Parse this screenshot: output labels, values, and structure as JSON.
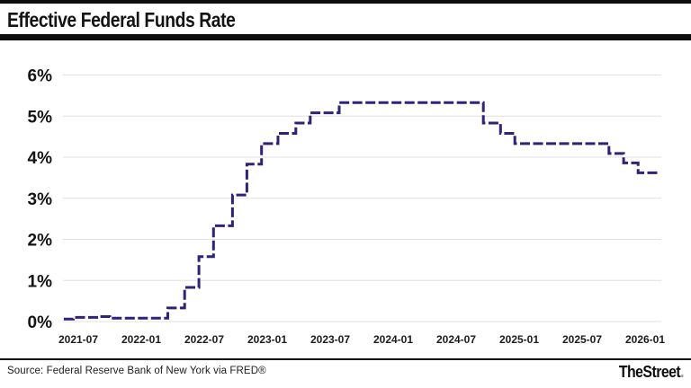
{
  "header": {
    "title": "Effective Federal Funds Rate"
  },
  "footer": {
    "source": "Source: Federal Reserve Bank of New York via FRED®",
    "brand": "TheStreet",
    "brand_dot": "."
  },
  "chart_data": {
    "type": "line",
    "subtype": "step-after",
    "title": "Effective Federal Funds Rate",
    "xlabel": "",
    "ylabel": "",
    "ylim": [
      0,
      6
    ],
    "y_ticks": [
      "0%",
      "1%",
      "2%",
      "3%",
      "4%",
      "5%",
      "6%"
    ],
    "x_ticks": [
      "2021-07",
      "2022-01",
      "2022-07",
      "2023-01",
      "2023-07",
      "2024-01",
      "2024-07",
      "2025-01",
      "2025-07",
      "2026-01"
    ],
    "grid": "horizontal-only",
    "grid_color": "#e0e0e0",
    "line_color": "#2d2379",
    "line_style": "dashed",
    "legend": "none",
    "series": [
      {
        "name": "Effective Federal Funds Rate (%)",
        "steps": [
          {
            "date": "2021-05-20",
            "rate": 0.06
          },
          {
            "date": "2021-06-17",
            "rate": 0.1
          },
          {
            "date": "2021-09-01",
            "rate": 0.12
          },
          {
            "date": "2021-10-01",
            "rate": 0.08
          },
          {
            "date": "2022-03-17",
            "rate": 0.33
          },
          {
            "date": "2022-05-05",
            "rate": 0.83
          },
          {
            "date": "2022-06-16",
            "rate": 1.58
          },
          {
            "date": "2022-07-28",
            "rate": 2.33
          },
          {
            "date": "2022-09-22",
            "rate": 3.08
          },
          {
            "date": "2022-11-03",
            "rate": 3.83
          },
          {
            "date": "2022-12-15",
            "rate": 4.33
          },
          {
            "date": "2023-02-02",
            "rate": 4.58
          },
          {
            "date": "2023-03-23",
            "rate": 4.83
          },
          {
            "date": "2023-05-04",
            "rate": 5.08
          },
          {
            "date": "2023-07-27",
            "rate": 5.33
          },
          {
            "date": "2024-09-19",
            "rate": 4.83
          },
          {
            "date": "2024-11-08",
            "rate": 4.58
          },
          {
            "date": "2024-12-19",
            "rate": 4.33
          },
          {
            "date": "2025-09-18",
            "rate": 4.09
          },
          {
            "date": "2025-10-30",
            "rate": 3.86
          },
          {
            "date": "2025-12-11",
            "rate": 3.62
          }
        ],
        "end_date": "2026-02-13"
      }
    ]
  }
}
